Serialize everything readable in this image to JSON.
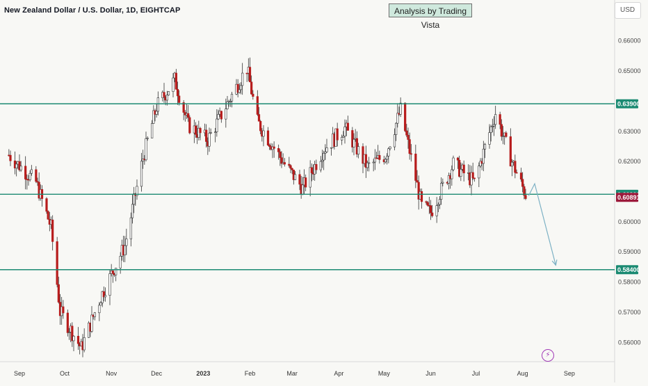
{
  "header": {
    "title": "New Zealand Dollar / U.S. Dollar, 1D, EIGHTCAP",
    "watermark": "Analysis by Trading Vista",
    "currency": "USD"
  },
  "icons": {
    "bolt": "lightning-bolt-icon"
  },
  "colors": {
    "background": "#f8f8f5",
    "candle_up": "#ffffff",
    "candle_down": "#b71c1c",
    "wick": "#333333",
    "level_line": "#1b8a72",
    "level_label_bg": "#1b8a72",
    "current_price_bg": "#9c1a3b",
    "arrow": "#7bb0c4"
  },
  "chart_data": {
    "type": "candlestick",
    "title": "New Zealand Dollar / U.S. Dollar, 1D, EIGHTCAP",
    "ylim": [
      0.5535,
      0.6665
    ],
    "y_ticks": [
      {
        "value": 0.66,
        "label": "0.66000"
      },
      {
        "value": 0.65,
        "label": "0.65000"
      },
      {
        "value": 0.63,
        "label": "0.63000"
      },
      {
        "value": 0.62,
        "label": "0.62000"
      },
      {
        "value": 0.6,
        "label": "0.60000"
      },
      {
        "value": 0.59,
        "label": "0.59000"
      },
      {
        "value": 0.58,
        "label": "0.58000"
      },
      {
        "value": 0.57,
        "label": "0.57000"
      },
      {
        "value": 0.56,
        "label": "0.56000"
      }
    ],
    "x_ticks": [
      {
        "label": "Sep",
        "date": "2022-09-01"
      },
      {
        "label": "Oct",
        "date": "2022-10-01"
      },
      {
        "label": "Nov",
        "date": "2022-11-01"
      },
      {
        "label": "Dec",
        "date": "2022-12-01"
      },
      {
        "label": "2023",
        "date": "2023-01-01"
      },
      {
        "label": "Feb",
        "date": "2023-02-01"
      },
      {
        "label": "Mar",
        "date": "2023-03-01"
      },
      {
        "label": "Apr",
        "date": "2023-04-01"
      },
      {
        "label": "May",
        "date": "2023-05-01"
      },
      {
        "label": "Jun",
        "date": "2023-06-01"
      },
      {
        "label": "Jul",
        "date": "2023-07-01"
      },
      {
        "label": "Aug",
        "date": "2023-08-01"
      },
      {
        "label": "Sep",
        "date": "2023-09-01"
      }
    ],
    "levels": [
      {
        "value": 0.639,
        "label": "0.63900"
      },
      {
        "value": 0.609,
        "label": "0.60900"
      },
      {
        "value": 0.584,
        "label": "0.58400"
      }
    ],
    "current_price": {
      "value": 0.60891,
      "label": "0.60891"
    },
    "projection": [
      {
        "date": "2023-08-05",
        "value": 0.6085
      },
      {
        "date": "2023-08-09",
        "value": 0.6125
      },
      {
        "date": "2023-08-23",
        "value": 0.5855
      }
    ],
    "price_path": [
      {
        "date": "2022-08-25",
        "value": 0.622
      },
      {
        "date": "2022-09-12",
        "value": 0.613
      },
      {
        "date": "2022-09-22",
        "value": 0.598
      },
      {
        "date": "2022-09-28",
        "value": 0.57
      },
      {
        "date": "2022-10-12",
        "value": 0.558
      },
      {
        "date": "2022-10-25",
        "value": 0.575
      },
      {
        "date": "2022-11-10",
        "value": 0.592
      },
      {
        "date": "2022-11-22",
        "value": 0.621
      },
      {
        "date": "2022-12-01",
        "value": 0.638
      },
      {
        "date": "2022-12-13",
        "value": 0.647
      },
      {
        "date": "2022-12-22",
        "value": 0.632
      },
      {
        "date": "2023-01-04",
        "value": 0.627
      },
      {
        "date": "2023-01-18",
        "value": 0.64
      },
      {
        "date": "2023-01-30",
        "value": 0.651
      },
      {
        "date": "2023-02-06",
        "value": 0.633
      },
      {
        "date": "2023-02-24",
        "value": 0.619
      },
      {
        "date": "2023-03-08",
        "value": 0.611
      },
      {
        "date": "2023-03-22",
        "value": 0.624
      },
      {
        "date": "2023-04-05",
        "value": 0.631
      },
      {
        "date": "2023-04-20",
        "value": 0.618
      },
      {
        "date": "2023-05-02",
        "value": 0.622
      },
      {
        "date": "2023-05-12",
        "value": 0.637
      },
      {
        "date": "2023-05-26",
        "value": 0.605
      },
      {
        "date": "2023-06-01",
        "value": 0.603
      },
      {
        "date": "2023-06-16",
        "value": 0.619
      },
      {
        "date": "2023-06-30",
        "value": 0.613
      },
      {
        "date": "2023-07-14",
        "value": 0.636
      },
      {
        "date": "2023-07-24",
        "value": 0.621
      },
      {
        "date": "2023-08-03",
        "value": 0.6089
      }
    ]
  }
}
